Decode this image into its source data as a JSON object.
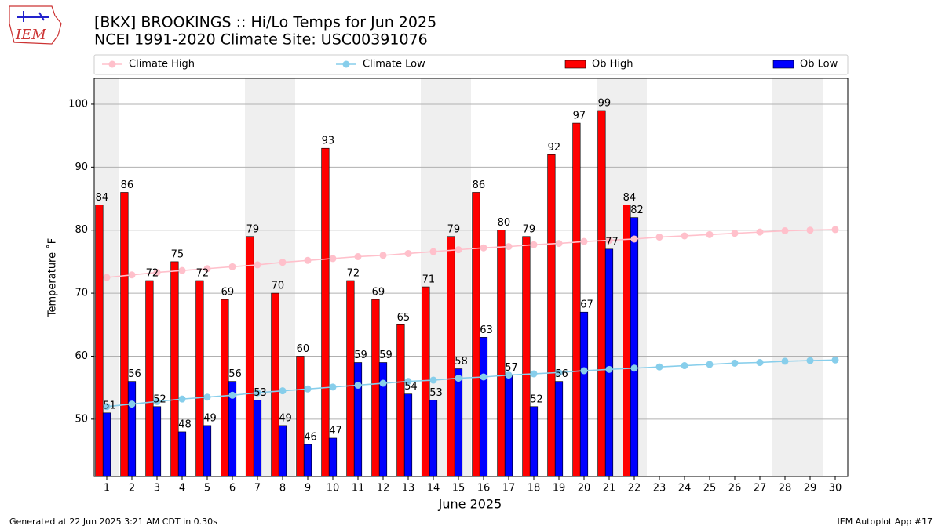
{
  "chart_data": {
    "type": "bar",
    "title": "[BKX] BROOKINGS :: Hi/Lo Temps for Jun 2025",
    "subtitle": "NCEI 1991-2020 Climate Site: USC00391076",
    "xlabel": "June 2025",
    "ylabel": "Temperature ˚F",
    "logo_text": "IEM",
    "footer_left": "Generated at 22 Jun 2025 3:21 AM CDT in 0.30s",
    "footer_right": "IEM Autoplot App #17",
    "categories": [
      "1",
      "2",
      "3",
      "4",
      "5",
      "6",
      "7",
      "8",
      "9",
      "10",
      "11",
      "12",
      "13",
      "14",
      "15",
      "16",
      "17",
      "18",
      "19",
      "20",
      "21",
      "22",
      "23",
      "24",
      "25",
      "26",
      "27",
      "28",
      "29",
      "30"
    ],
    "ylim": [
      40.9,
      104.1
    ],
    "yticks": [
      50,
      60,
      70,
      80,
      90,
      100
    ],
    "grid": true,
    "series": [
      {
        "name": "Climate High",
        "color": "#ffc0cb",
        "kind": "line",
        "values": [
          72.5,
          72.9,
          73.3,
          73.6,
          73.9,
          74.2,
          74.5,
          74.9,
          75.2,
          75.5,
          75.8,
          76.0,
          76.3,
          76.6,
          76.9,
          77.2,
          77.4,
          77.7,
          77.9,
          78.2,
          78.4,
          78.6,
          78.9,
          79.1,
          79.3,
          79.5,
          79.7,
          79.9,
          80.0,
          80.1
        ]
      },
      {
        "name": "Climate Low",
        "color": "#87ceeb",
        "kind": "line",
        "values": [
          52.0,
          52.4,
          52.8,
          53.2,
          53.5,
          53.8,
          54.2,
          54.5,
          54.8,
          55.1,
          55.4,
          55.7,
          56.0,
          56.2,
          56.5,
          56.7,
          57.0,
          57.2,
          57.4,
          57.7,
          57.9,
          58.1,
          58.3,
          58.5,
          58.7,
          58.9,
          59.0,
          59.2,
          59.3,
          59.4
        ]
      },
      {
        "name": "Ob High",
        "color": "#ff0000",
        "kind": "bar",
        "values": [
          84,
          86,
          72,
          75,
          72,
          69,
          79,
          70,
          60,
          93,
          72,
          69,
          65,
          71,
          79,
          86,
          80,
          79,
          92,
          97,
          99,
          84,
          null,
          null,
          null,
          null,
          null,
          null,
          null,
          null
        ]
      },
      {
        "name": "Ob Low",
        "color": "#0000ff",
        "kind": "bar",
        "values": [
          51,
          56,
          52,
          48,
          49,
          56,
          53,
          49,
          46,
          47,
          59,
          59,
          54,
          53,
          58,
          63,
          57,
          52,
          56,
          67,
          77,
          82,
          null,
          null,
          null,
          null,
          null,
          null,
          null,
          null
        ]
      }
    ]
  }
}
